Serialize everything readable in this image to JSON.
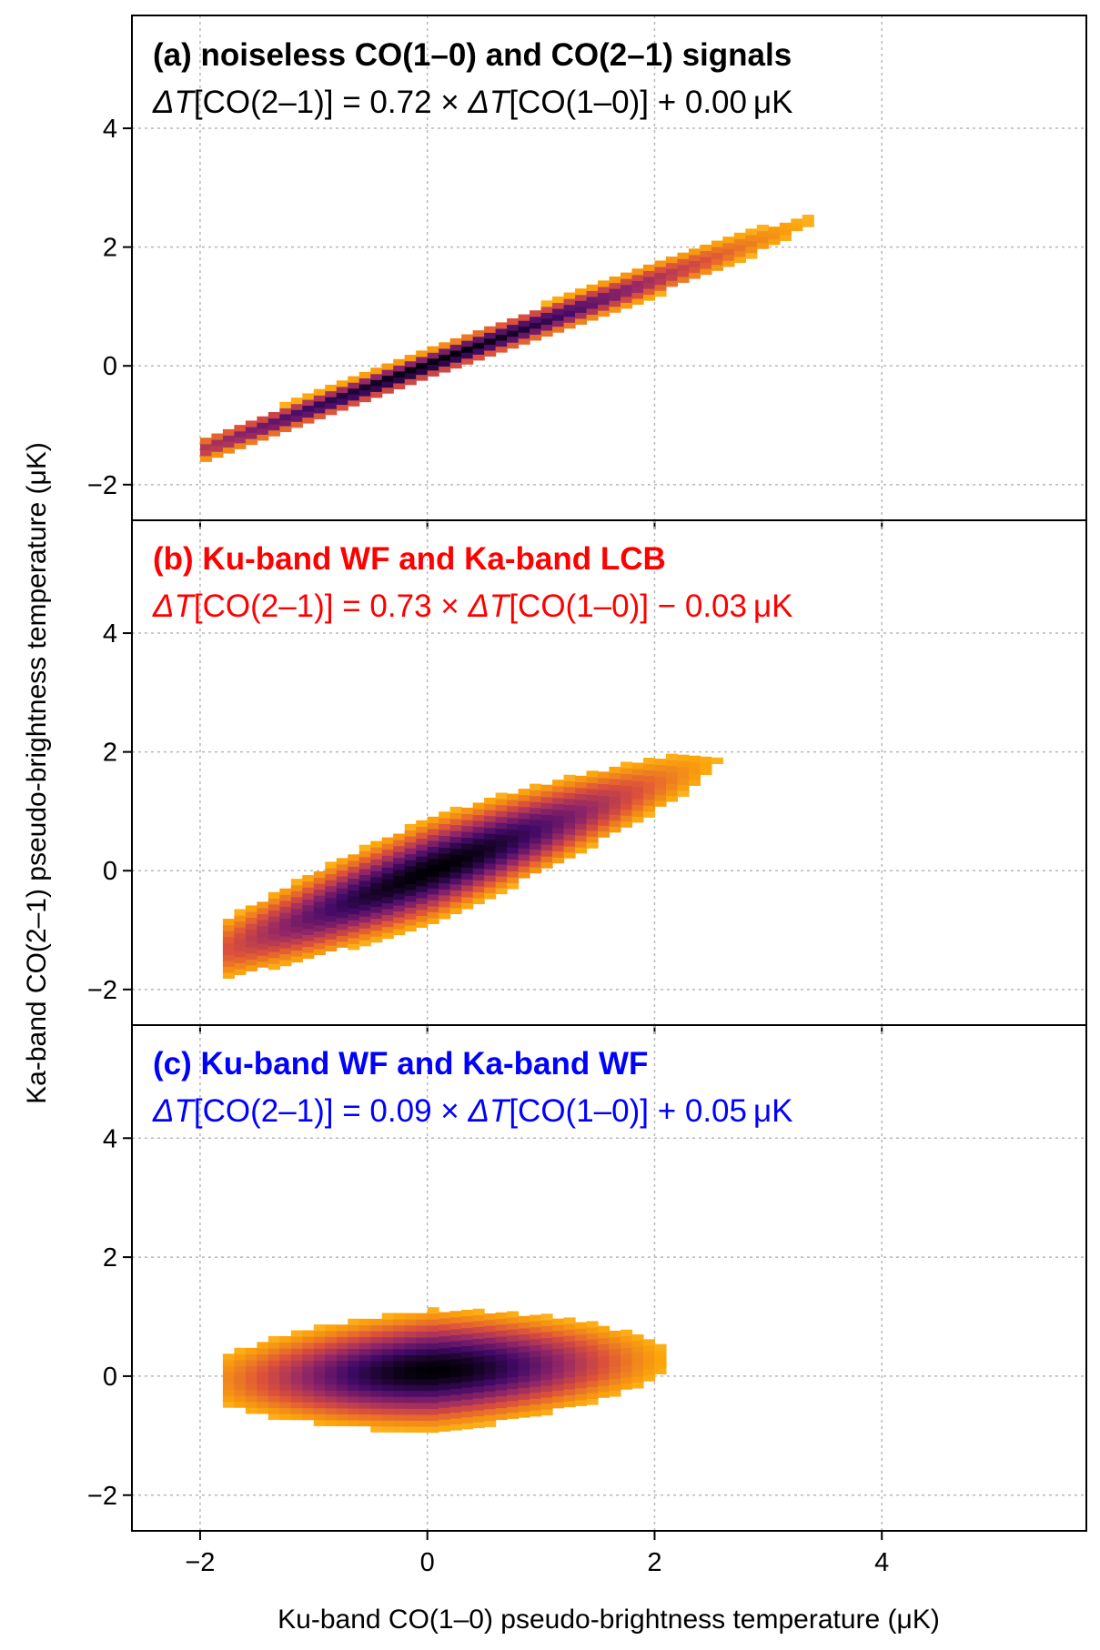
{
  "figure": {
    "xlabel": "Ku-band CO(1–0) pseudo-brightness temperature (μK)",
    "ylabel": "Ka-band CO(2–1) pseudo-brightness temperature (μK)"
  },
  "colormap": [
    "#000004",
    "#420a68",
    "#932667",
    "#dd513a",
    "#fca50a",
    "#fcffa4"
  ],
  "chart_data": [
    {
      "type": "heatmap",
      "title": "(a) noiseless CO(1–0) and CO(2–1) signals",
      "equation": {
        "lhs": "ΔT",
        "mid": "[CO(2–1)] = 0.72 × ",
        "rhs": "[CO(1–0)] + 0.00 μK"
      },
      "color": "#000000",
      "slope": 0.72,
      "intercept": 0.0,
      "x_range": [
        -2.0,
        6.0
      ],
      "y_sigma": 0.09,
      "x_sigma": 1.2,
      "xlim": [
        -2.6,
        5.8
      ],
      "ylim": [
        -2.6,
        5.9
      ],
      "xticks": [
        "−2",
        "0",
        "2",
        "4"
      ],
      "yticks": [
        "−2",
        "0",
        "2",
        "4"
      ],
      "grid": true
    },
    {
      "type": "heatmap",
      "title": "(b) Ku-band WF and Ka-band LCB",
      "equation": {
        "lhs": "ΔT",
        "mid": "[CO(2–1)] = 0.73 × ",
        "rhs": "[CO(1–0)] − 0.03 μK"
      },
      "color": "#ff0000",
      "slope": 0.73,
      "intercept": -0.03,
      "x_range": [
        -1.8,
        5.0
      ],
      "y_sigma": 0.2,
      "x_sigma": 0.9,
      "xlim": [
        -2.6,
        5.8
      ],
      "ylim": [
        -2.6,
        5.9
      ],
      "xticks": [
        "−2",
        "0",
        "2",
        "4"
      ],
      "yticks": [
        "−2",
        "0",
        "2",
        "4"
      ],
      "grid": true
    },
    {
      "type": "heatmap",
      "title": "(c) Ku-band WF and Ka-band WF",
      "equation": {
        "lhs": "ΔT",
        "mid": "[CO(2–1)] = 0.09 × ",
        "rhs": "[CO(1–0)] + 0.05 μK"
      },
      "color": "#0000ff",
      "slope": 0.09,
      "intercept": 0.05,
      "x_range": [
        -1.8,
        5.2
      ],
      "y_sigma": 0.28,
      "x_sigma": 0.75,
      "xlim": [
        -2.6,
        5.8
      ],
      "ylim": [
        -2.6,
        5.9
      ],
      "xticks": [
        "−2",
        "0",
        "2",
        "4"
      ],
      "yticks": [
        "−2",
        "0",
        "2",
        "4"
      ],
      "grid": true
    }
  ]
}
